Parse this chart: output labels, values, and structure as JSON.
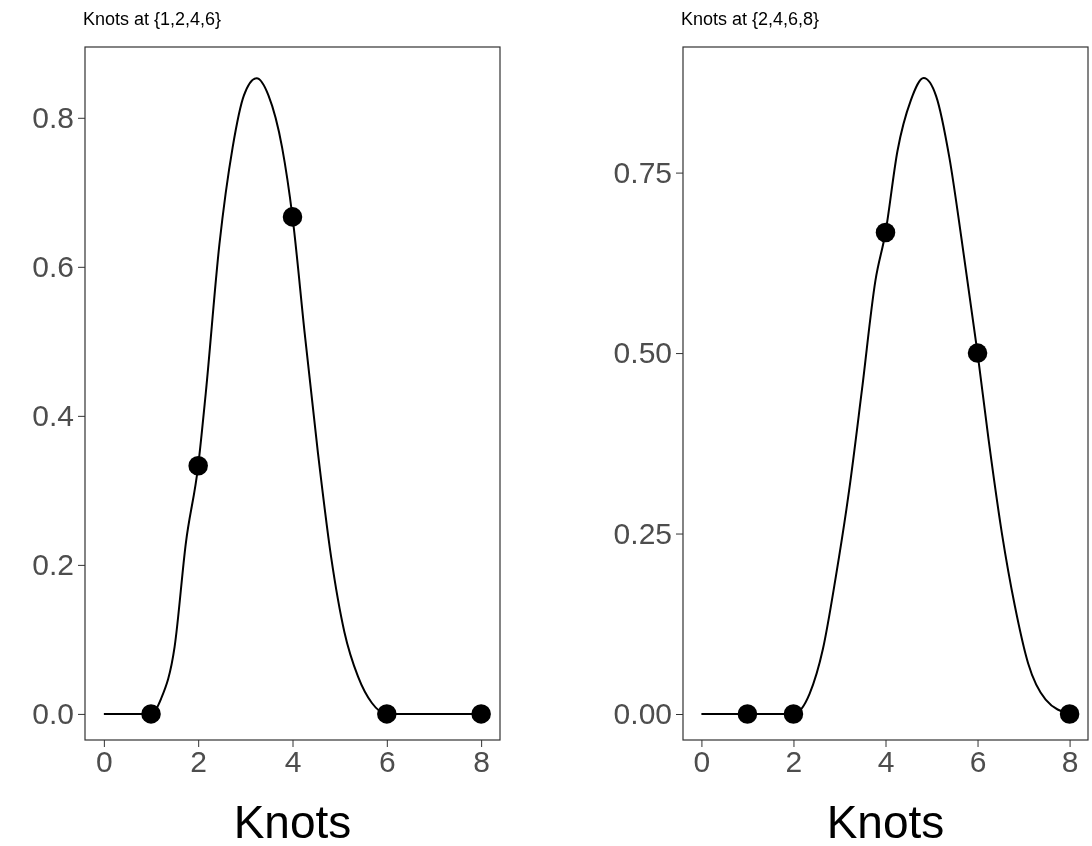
{
  "chart_data": [
    {
      "type": "line",
      "title": "Knots at {1,2,4,6}",
      "xlabel": "Knots",
      "xlim": [
        -0.4,
        8.4
      ],
      "xticks": [
        0,
        2,
        4,
        6,
        8
      ],
      "ylim": [
        -0.035,
        0.895
      ],
      "yticks": [
        {
          "value": 0,
          "label": "0.0"
        },
        {
          "value": 0.2,
          "label": "0.2"
        },
        {
          "value": 0.4,
          "label": "0.4"
        },
        {
          "value": 0.6,
          "label": "0.6"
        },
        {
          "value": 0.8,
          "label": "0.8"
        }
      ],
      "grid": false,
      "series": [
        {
          "type": "line",
          "color": "#000000",
          "marker": "none",
          "x": [
            0,
            1,
            1.21,
            1.5,
            1.74,
            2,
            2.16,
            2.45,
            2.73,
            2.97,
            3.24,
            3.49,
            3.78,
            4,
            4.26,
            4.54,
            4.82,
            5.1,
            5.39,
            5.68,
            6,
            8
          ],
          "values": [
            0,
            0,
            0.02,
            0.09,
            0.23,
            0.333,
            0.43,
            0.63,
            0.76,
            0.83,
            0.853,
            0.83,
            0.76,
            0.667,
            0.51,
            0.35,
            0.21,
            0.11,
            0.05,
            0.015,
            0,
            0
          ]
        },
        {
          "type": "scatter",
          "color": "#000000",
          "marker": "circle",
          "x": [
            1,
            2,
            4,
            6,
            8
          ],
          "values": [
            0,
            0.333,
            0.667,
            0,
            0
          ]
        }
      ]
    },
    {
      "type": "line",
      "title": "Knots at {2,4,6,8}",
      "xlabel": "Knots",
      "xlim": [
        -0.4,
        8.4
      ],
      "xticks": [
        0,
        2,
        4,
        6,
        8
      ],
      "ylim": [
        -0.036,
        0.924
      ],
      "yticks": [
        {
          "value": 0,
          "label": "0.00"
        },
        {
          "value": 0.25,
          "label": "0.25"
        },
        {
          "value": 0.5,
          "label": "0.50"
        },
        {
          "value": 0.75,
          "label": "0.75"
        }
      ],
      "grid": false,
      "series": [
        {
          "type": "line",
          "color": "#000000",
          "marker": "none",
          "x": [
            0,
            2,
            2.35,
            2.64,
            2.92,
            3.21,
            3.49,
            3.78,
            4,
            4.26,
            4.55,
            4.83,
            5.1,
            5.39,
            5.67,
            6,
            6.24,
            6.53,
            6.81,
            7.1,
            7.48,
            8
          ],
          "values": [
            0,
            0,
            0.028,
            0.09,
            0.19,
            0.31,
            0.45,
            0.6,
            0.667,
            0.78,
            0.85,
            0.881,
            0.856,
            0.77,
            0.65,
            0.5,
            0.38,
            0.25,
            0.15,
            0.07,
            0.02,
            0
          ]
        },
        {
          "type": "scatter",
          "color": "#000000",
          "marker": "circle",
          "x": [
            1,
            2,
            4,
            6,
            8
          ],
          "values": [
            0,
            0,
            0.667,
            0.5,
            0
          ]
        }
      ]
    }
  ]
}
